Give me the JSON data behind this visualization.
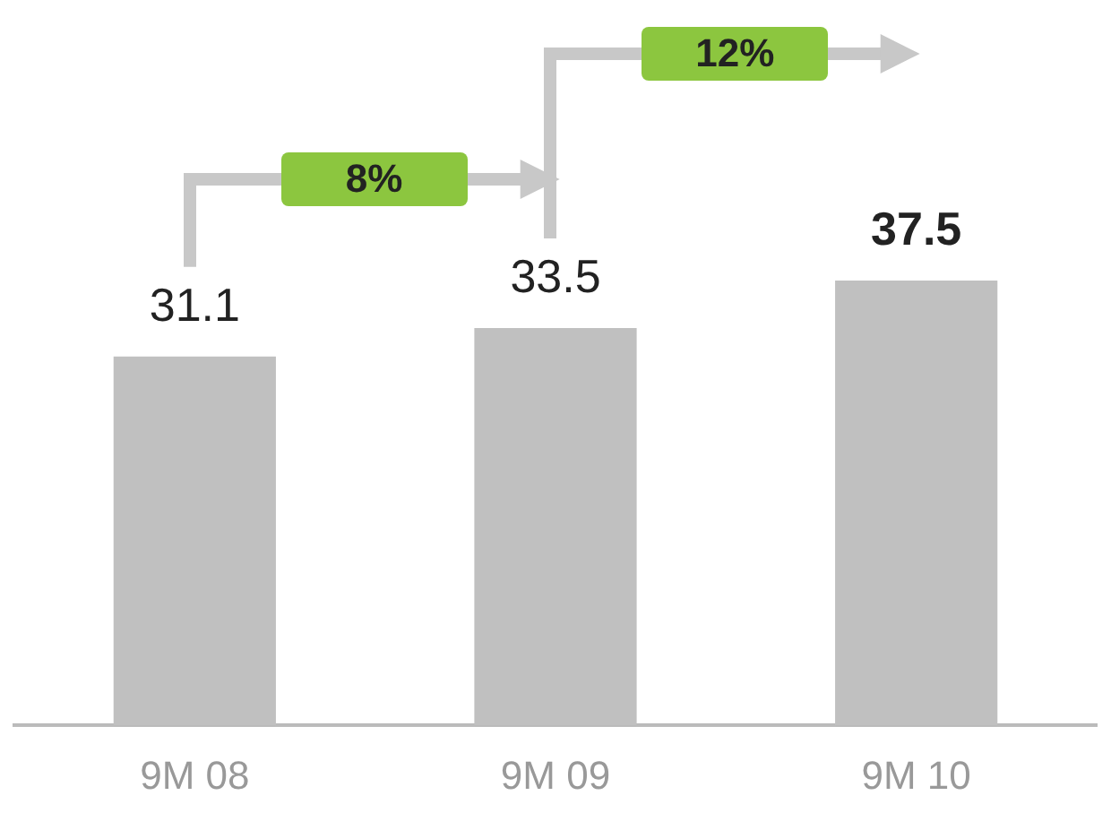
{
  "chart_data": {
    "type": "bar",
    "categories": [
      "9M 08",
      "9M 09",
      "9M 10"
    ],
    "values": [
      31.1,
      33.5,
      37.5
    ],
    "color": "#c0c0c0",
    "tick_labels": "x",
    "grid": false,
    "legend": false,
    "data_labels": true,
    "annotations": [
      "8%",
      "12%"
    ]
  }
}
